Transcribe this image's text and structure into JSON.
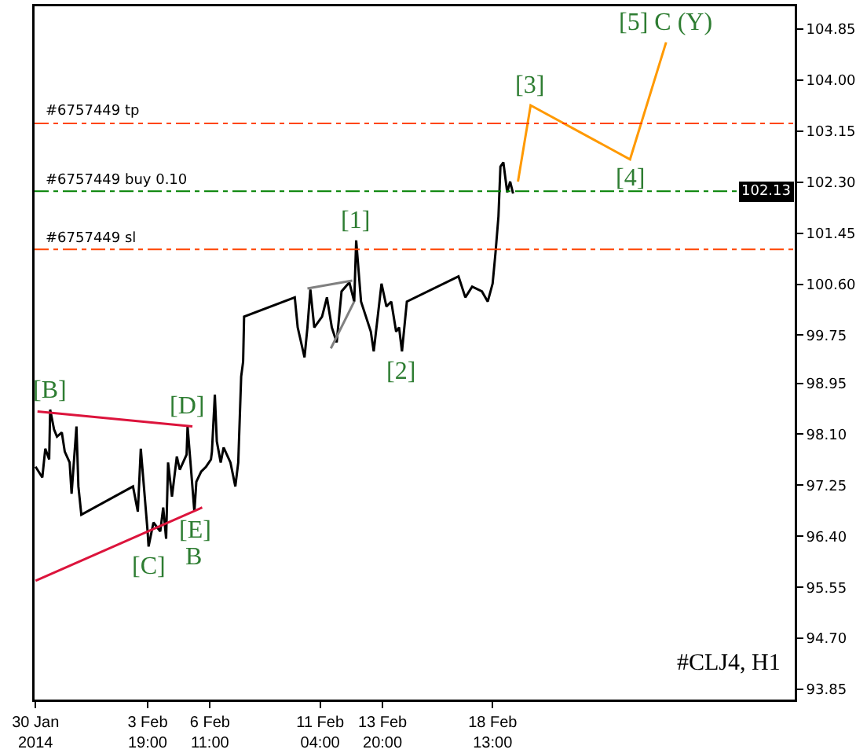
{
  "chart_data": {
    "type": "line",
    "xlim": [
      "2014-01-29T23:00",
      "2014-03-03T11:00"
    ],
    "xticks": [
      {
        "value": "2014-01-30T00:00",
        "label": "30 Jan 2014"
      },
      {
        "value": "2014-02-03T19:00",
        "label": "3 Feb 19:00"
      },
      {
        "value": "2014-02-06T11:00",
        "label": "6 Feb 11:00"
      },
      {
        "value": "2014-02-11T04:00",
        "label": "11 Feb 04:00"
      },
      {
        "value": "2014-02-13T20:00",
        "label": "13 Feb 20:00"
      },
      {
        "value": "2014-02-18T13:00",
        "label": "18 Feb 13:00"
      }
    ],
    "ylim": [
      93.68,
      105.23
    ],
    "yticks": [
      93.85,
      {
        "value": 94.7,
        "label": "94.70"
      },
      95.55,
      {
        "value": 96.4,
        "label": "96.40"
      },
      97.25,
      {
        "value": 98.1,
        "label": "98.10"
      },
      98.95,
      99.75,
      {
        "value": 100.6,
        "label": "100.60"
      },
      101.45,
      {
        "value": 102.3,
        "label": "102.30"
      },
      103.15,
      {
        "value": 104,
        "label": "104.00"
      },
      104.85
    ],
    "series": [
      {
        "color": "#000000",
        "x": [
          "2014-01-30T00:00",
          "2014-01-30T07:00",
          "2014-01-30T10:00",
          "2014-01-30T14:00",
          "2014-01-30T15:00",
          "2014-01-30T19:00",
          "2014-01-30T22:00",
          "2014-01-31T03:00",
          "2014-01-31T06:00",
          "2014-01-31T11:00",
          "2014-01-31T13:00",
          "2014-01-31T18:00",
          "2014-01-31T20:00",
          "2014-01-31T23:00",
          "2014-02-03T04:00",
          "2014-02-03T09:00",
          "2014-02-03T12:00",
          "2014-02-03T19:00",
          "2014-02-03T20:00",
          "2014-02-04T01:00",
          "2014-02-04T08:00",
          "2014-02-04T11:00",
          "2014-02-04T14:00",
          "2014-02-04T16:00",
          "2014-02-04T20:00",
          "2014-02-05T01:00",
          "2014-02-05T04:00",
          "2014-02-05T11:00",
          "2014-02-05T12:00",
          "2014-02-05T15:00",
          "2014-02-05T19:00",
          "2014-02-05T21:00",
          "2014-02-06T02:00",
          "2014-02-06T07:00",
          "2014-02-06T12:00",
          "2014-02-06T13:00",
          "2014-02-06T16:00",
          "2014-02-06T18:00",
          "2014-02-06T22:00",
          "2014-02-07T01:00",
          "2014-02-07T08:00",
          "2014-02-07T13:00",
          "2014-02-07T16:00",
          "2014-02-07T19:00",
          "2014-02-07T21:00",
          "2014-02-07T22:00",
          "2014-02-10T02:00",
          "2014-02-10T05:00",
          "2014-02-10T12:00",
          "2014-02-10T15:00",
          "2014-02-10T18:00",
          "2014-02-10T22:00",
          "2014-02-11T06:00",
          "2014-02-11T11:00",
          "2014-02-11T16:00",
          "2014-02-11T21:00",
          "2014-02-12T02:00",
          "2014-02-12T10:00",
          "2014-02-12T15:00",
          "2014-02-12T17:00",
          "2014-02-12T22:00",
          "2014-02-13T08:00",
          "2014-02-13T11:00",
          "2014-02-13T19:00",
          "2014-02-14T00:00",
          "2014-02-14T05:00",
          "2014-02-14T10:00",
          "2014-02-14T13:00",
          "2014-02-14T16:00",
          "2014-02-14T21:00",
          "2014-02-17T02:00",
          "2014-02-17T09:00",
          "2014-02-17T16:00",
          "2014-02-18T02:00",
          "2014-02-18T08:00",
          "2014-02-18T13:00",
          "2014-02-18T16:00",
          "2014-02-18T19:00",
          "2014-02-18T21:00",
          "2014-02-19T00:00",
          "2014-02-19T04:00",
          "2014-02-19T07:00",
          "2014-02-19T10:00"
        ],
        "values": [
          97.56,
          97.38,
          97.86,
          97.68,
          98.51,
          98.18,
          98.06,
          98.13,
          97.81,
          97.63,
          97.11,
          98.23,
          97.23,
          96.76,
          97.23,
          96.81,
          97.86,
          96.48,
          96.23,
          96.63,
          96.48,
          96.88,
          96.36,
          97.63,
          97.06,
          97.73,
          97.51,
          97.76,
          98.23,
          97.63,
          96.81,
          97.31,
          97.48,
          97.56,
          97.68,
          97.81,
          98.76,
          97.98,
          97.63,
          97.88,
          97.63,
          97.23,
          97.63,
          99.06,
          99.31,
          100.06,
          100.38,
          99.88,
          99.38,
          99.88,
          100.51,
          99.88,
          100.06,
          100.38,
          99.88,
          99.63,
          100.48,
          100.63,
          100.31,
          101.33,
          100.31,
          99.81,
          99.48,
          100.61,
          100.23,
          100.31,
          99.81,
          99.88,
          99.48,
          100.31,
          100.73,
          100.38,
          100.56,
          100.48,
          100.31,
          100.61,
          101.13,
          101.73,
          102.56,
          102.63,
          102.13,
          102.31,
          102.11
        ]
      },
      {
        "color": "#ff9900",
        "x": [
          "2014-02-19T15:00",
          "2014-02-20T04:00",
          "2014-02-24T10:00",
          "2014-02-25T23:00"
        ],
        "values": [
          102.31,
          103.58,
          102.68,
          104.63
        ]
      },
      {
        "color": "#dc143c",
        "x": [
          "2014-01-30T02:00",
          "2014-02-05T17:00"
        ],
        "values": [
          98.48,
          98.23
        ]
      },
      {
        "color": "#dc143c",
        "x": [
          "2014-01-30T00:00",
          "2014-02-06T03:00"
        ],
        "values": [
          95.66,
          96.88
        ]
      },
      {
        "color": "#808080",
        "x": [
          "2014-02-10T15:00",
          "2014-02-12T13:00"
        ],
        "values": [
          100.53,
          100.66
        ]
      },
      {
        "color": "#808080",
        "x": [
          "2014-02-11T15:00",
          "2014-02-12T15:00"
        ],
        "values": [
          99.53,
          100.31
        ]
      }
    ],
    "ref_lines": [
      {
        "axis": "y",
        "value": 103.28,
        "label": "#6757449 tp",
        "color": "#ff4500",
        "line_style": "dashed"
      },
      {
        "axis": "y",
        "value": 102.15,
        "label": "#6757449 buy 0.10",
        "color": "#008000",
        "line_style": "dashed"
      },
      {
        "axis": "y",
        "value": 101.18,
        "label": "#6757449 sl",
        "color": "#ff4500",
        "line_style": "dashed"
      }
    ],
    "annotations": [
      {
        "text": "[B]",
        "x": "2014-01-30T15:00",
        "y": 98.51
      },
      {
        "text": "[D]",
        "x": "2014-02-05T12:00",
        "y": 98.23
      },
      {
        "text": "[C]",
        "x": "2014-02-03T20:00",
        "y": 96.23
      },
      {
        "text": "[E]",
        "x": "2014-02-05T19:00",
        "y": 96.81
      },
      {
        "text": "B",
        "x": "2014-02-05T19:00",
        "y": 96.81
      },
      {
        "text": "[1]",
        "x": "2014-02-12T17:00",
        "y": 101.33
      },
      {
        "text": "[2]",
        "x": "2014-02-14T16:00",
        "y": 99.48
      },
      {
        "text": "[3]",
        "x": "2014-02-20T04:00",
        "y": 103.58
      },
      {
        "text": "[4]",
        "x": "2014-02-24T10:00",
        "y": 102.68
      },
      {
        "text": "[5] C (Y)",
        "x": "2014-02-25T23:00",
        "y": 104.63
      },
      {
        "text": "102.13",
        "y": 102.13
      },
      "#CLJ4, H1"
    ],
    "grid": false,
    "marker": "none",
    "line_style": "solid"
  }
}
